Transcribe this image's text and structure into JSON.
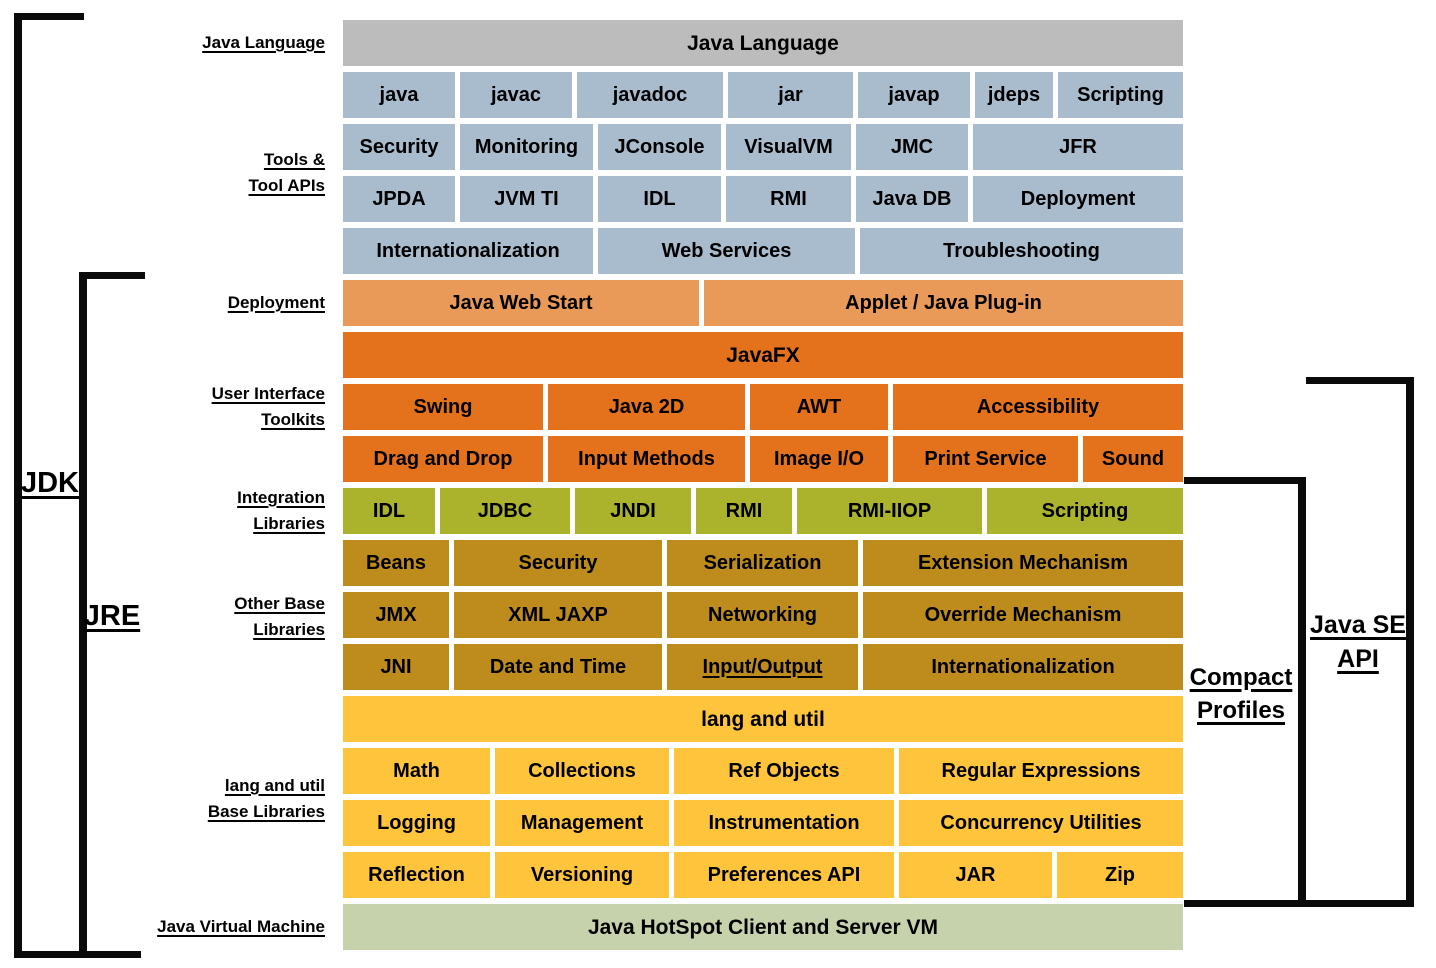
{
  "palette": {
    "gray": "#bcbcbc",
    "steel_blue": "#a9bccd",
    "light_orange": "#ea9a58",
    "orange": "#e4711c",
    "olive": "#aab32b",
    "gold": "#bd8c1d",
    "yellow": "#fec43c",
    "sage": "#c6d2ab",
    "line": "#0a0a0a",
    "text": "#000000"
  },
  "side_labels": [
    {
      "id": "java-language",
      "text": "Java Language"
    },
    {
      "id": "tools-tool-apis",
      "text": "Tools &\nTool APIs"
    },
    {
      "id": "deployment",
      "text": "Deployment"
    },
    {
      "id": "user-interface-toolkits",
      "text": "User Interface\nToolkits"
    },
    {
      "id": "integration-libraries",
      "text": "Integration\nLibraries"
    },
    {
      "id": "other-base-libraries",
      "text": "Other Base\nLibraries"
    },
    {
      "id": "lang-util-base-libraries",
      "text": "lang and util\nBase Libraries"
    },
    {
      "id": "java-virtual-machine",
      "text": "Java Virtual Machine"
    }
  ],
  "brackets": {
    "jdk": "JDK",
    "jre": "JRE",
    "java_se_api": "Java SE\nAPI",
    "compact_profiles": "Compact\nProfiles"
  },
  "rows": [
    {
      "id": "java-language-banner",
      "color": "gray",
      "cells": [
        "Java Language"
      ]
    },
    {
      "id": "tools-row-1",
      "color": "steel_blue",
      "cells": [
        "java",
        "javac",
        "javadoc",
        "jar",
        "javap",
        "jdeps",
        "Scripting"
      ]
    },
    {
      "id": "tools-row-2",
      "color": "steel_blue",
      "cells": [
        "Security",
        "Monitoring",
        "JConsole",
        "VisualVM",
        "JMC",
        "JFR"
      ]
    },
    {
      "id": "tools-row-3",
      "color": "steel_blue",
      "cells": [
        "JPDA",
        "JVM TI",
        "IDL",
        "RMI",
        "Java DB",
        "Deployment"
      ]
    },
    {
      "id": "tools-row-4",
      "color": "steel_blue",
      "cells": [
        "Internationalization",
        "Web Services",
        "Troubleshooting"
      ]
    },
    {
      "id": "deployment-row",
      "color": "light_orange",
      "cells": [
        "Java Web Start",
        "Applet / Java Plug-in"
      ]
    },
    {
      "id": "javafx-row",
      "color": "orange",
      "cells": [
        "JavaFX"
      ]
    },
    {
      "id": "ui-row-1",
      "color": "orange",
      "cells": [
        "Swing",
        "Java 2D",
        "AWT",
        "Accessibility"
      ]
    },
    {
      "id": "ui-row-2",
      "color": "orange",
      "cells": [
        "Drag and Drop",
        "Input Methods",
        "Image I/O",
        "Print Service",
        "Sound"
      ]
    },
    {
      "id": "integration-row",
      "color": "olive",
      "cells": [
        "IDL",
        "JDBC",
        "JNDI",
        "RMI",
        "RMI-IIOP",
        "Scripting"
      ]
    },
    {
      "id": "other-base-row-1",
      "color": "gold",
      "cells": [
        "Beans",
        "Security",
        "Serialization",
        "Extension Mechanism"
      ]
    },
    {
      "id": "other-base-row-2",
      "color": "gold",
      "cells": [
        "JMX",
        "XML JAXP",
        "Networking",
        "Override Mechanism"
      ]
    },
    {
      "id": "other-base-row-3",
      "color": "gold",
      "cells": [
        "JNI",
        "Date and Time",
        {
          "label": "Input/Output",
          "underline": true
        },
        "Internationalization"
      ]
    },
    {
      "id": "lang-util-banner",
      "color": "yellow",
      "cells": [
        "lang and util"
      ]
    },
    {
      "id": "lang-util-row-1",
      "color": "yellow",
      "cells": [
        "Math",
        "Collections",
        "Ref Objects",
        "Regular Expressions"
      ]
    },
    {
      "id": "lang-util-row-2",
      "color": "yellow",
      "cells": [
        "Logging",
        "Management",
        "Instrumentation",
        "Concurrency Utilities"
      ]
    },
    {
      "id": "lang-util-row-3",
      "color": "yellow",
      "cells": [
        "Reflection",
        "Versioning",
        "Preferences API",
        "JAR",
        "Zip"
      ]
    },
    {
      "id": "jvm-row",
      "color": "sage",
      "cells": [
        "Java HotSpot Client and Server VM"
      ]
    }
  ]
}
